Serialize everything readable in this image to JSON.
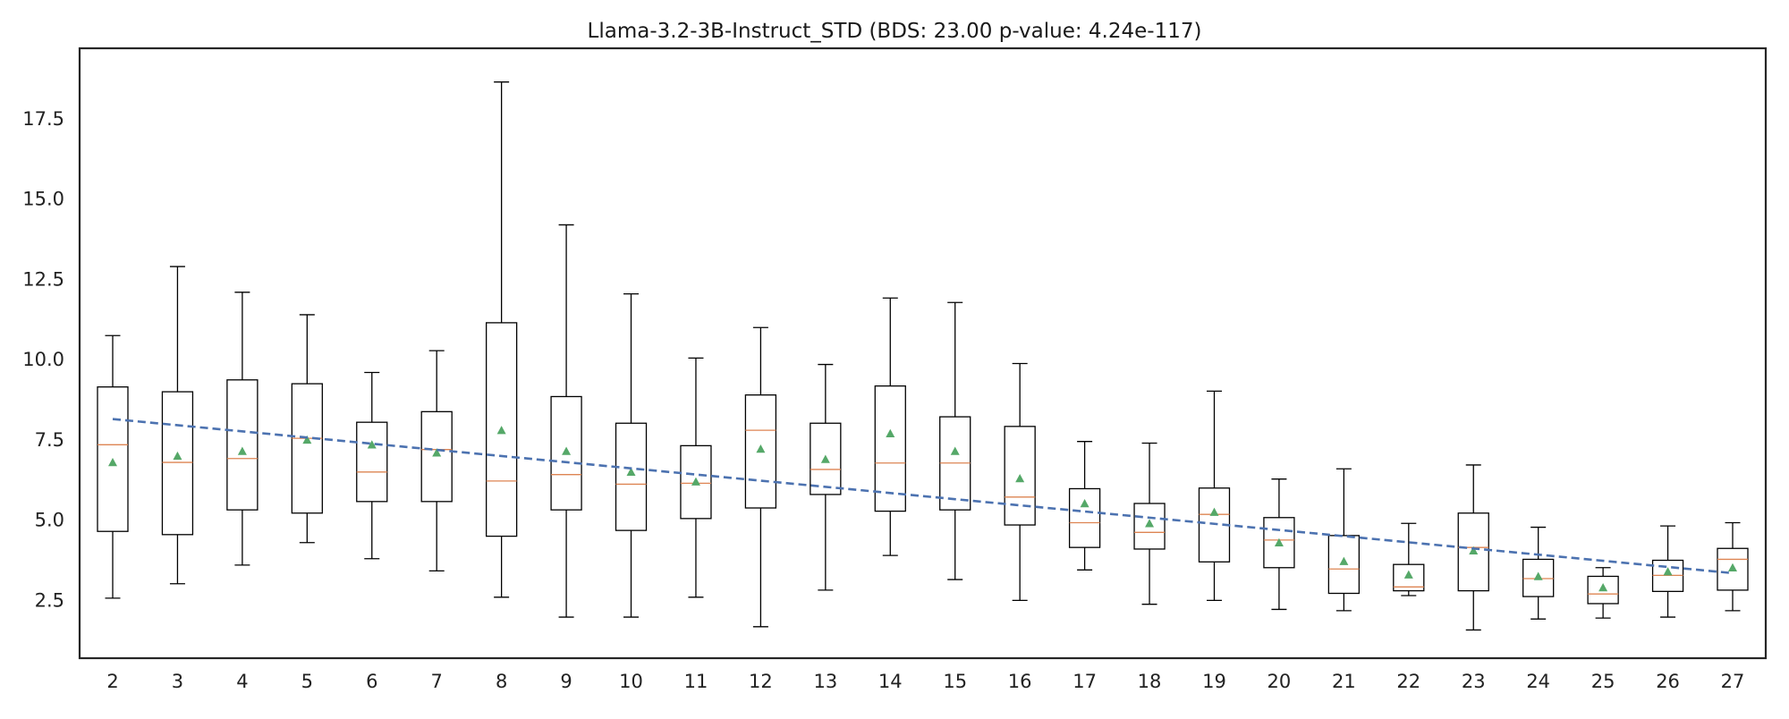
{
  "chart_data": {
    "type": "box",
    "title": "Llama-3.2-3B-Instruct_STD (BDS: 23.00 p-value: 4.24e-117)",
    "xlabel": "",
    "ylabel": "",
    "categories": [
      "2",
      "3",
      "4",
      "5",
      "6",
      "7",
      "8",
      "9",
      "10",
      "11",
      "12",
      "13",
      "14",
      "15",
      "16",
      "17",
      "18",
      "19",
      "20",
      "21",
      "22",
      "23",
      "24",
      "25",
      "26",
      "27"
    ],
    "yticks": [
      "2.5",
      "5.0",
      "7.5",
      "10.0",
      "12.5",
      "15.0",
      "17.5"
    ],
    "ylim": [
      0.7,
      19.7
    ],
    "grid": false,
    "boxes": [
      {
        "cat": "2",
        "whislo": 2.57,
        "q1": 4.65,
        "med": 7.35,
        "q3": 9.15,
        "whishi": 10.75,
        "mean": 6.8
      },
      {
        "cat": "3",
        "whislo": 3.02,
        "q1": 4.55,
        "med": 6.8,
        "q3": 9.0,
        "whishi": 12.9,
        "mean": 7.0
      },
      {
        "cat": "4",
        "whislo": 3.6,
        "q1": 5.32,
        "med": 6.92,
        "q3": 9.37,
        "whishi": 12.1,
        "mean": 7.15
      },
      {
        "cat": "5",
        "whislo": 4.3,
        "q1": 5.22,
        "med": 7.55,
        "q3": 9.25,
        "whishi": 11.4,
        "mean": 7.5
      },
      {
        "cat": "6",
        "whislo": 3.8,
        "q1": 5.58,
        "med": 6.5,
        "q3": 8.05,
        "whishi": 9.6,
        "mean": 7.35
      },
      {
        "cat": "7",
        "whislo": 3.42,
        "q1": 5.58,
        "med": 7.2,
        "q3": 8.38,
        "whishi": 10.28,
        "mean": 7.1
      },
      {
        "cat": "8",
        "whislo": 2.6,
        "q1": 4.5,
        "med": 6.22,
        "q3": 11.15,
        "whishi": 18.65,
        "mean": 7.8
      },
      {
        "cat": "9",
        "whislo": 1.98,
        "q1": 5.32,
        "med": 6.42,
        "q3": 8.85,
        "whishi": 14.2,
        "mean": 7.15
      },
      {
        "cat": "10",
        "whislo": 1.98,
        "q1": 4.68,
        "med": 6.12,
        "q3": 8.02,
        "whishi": 12.05,
        "mean": 6.5
      },
      {
        "cat": "11",
        "whislo": 2.6,
        "q1": 5.05,
        "med": 6.15,
        "q3": 7.32,
        "whishi": 10.05,
        "mean": 6.2
      },
      {
        "cat": "12",
        "whislo": 1.68,
        "q1": 5.38,
        "med": 7.8,
        "q3": 8.9,
        "whishi": 11.0,
        "mean": 7.22
      },
      {
        "cat": "13",
        "whislo": 2.82,
        "q1": 5.8,
        "med": 6.58,
        "q3": 8.02,
        "whishi": 9.85,
        "mean": 6.9
      },
      {
        "cat": "14",
        "whislo": 3.9,
        "q1": 5.28,
        "med": 6.78,
        "q3": 9.18,
        "whishi": 11.92,
        "mean": 7.7
      },
      {
        "cat": "15",
        "whislo": 3.15,
        "q1": 5.32,
        "med": 6.78,
        "q3": 8.22,
        "whishi": 11.78,
        "mean": 7.15
      },
      {
        "cat": "16",
        "whislo": 2.5,
        "q1": 4.85,
        "med": 5.72,
        "q3": 7.92,
        "whishi": 9.88,
        "mean": 6.3
      },
      {
        "cat": "17",
        "whislo": 3.45,
        "q1": 4.15,
        "med": 4.92,
        "q3": 5.98,
        "whishi": 7.45,
        "mean": 5.52
      },
      {
        "cat": "18",
        "whislo": 2.38,
        "q1": 4.1,
        "med": 4.62,
        "q3": 5.52,
        "whishi": 7.4,
        "mean": 4.9
      },
      {
        "cat": "19",
        "whislo": 2.5,
        "q1": 3.7,
        "med": 5.18,
        "q3": 6.0,
        "whishi": 9.02,
        "mean": 5.25
      },
      {
        "cat": "20",
        "whislo": 2.22,
        "q1": 3.52,
        "med": 4.38,
        "q3": 5.08,
        "whishi": 6.28,
        "mean": 4.3
      },
      {
        "cat": "21",
        "whislo": 2.18,
        "q1": 2.72,
        "med": 3.48,
        "q3": 4.52,
        "whishi": 6.6,
        "mean": 3.72
      },
      {
        "cat": "22",
        "whislo": 2.65,
        "q1": 2.8,
        "med": 2.92,
        "q3": 3.62,
        "whishi": 4.9,
        "mean": 3.3
      },
      {
        "cat": "23",
        "whislo": 1.58,
        "q1": 2.8,
        "med": 4.15,
        "q3": 5.22,
        "whishi": 6.72,
        "mean": 4.05
      },
      {
        "cat": "24",
        "whislo": 1.92,
        "q1": 2.62,
        "med": 3.18,
        "q3": 3.78,
        "whishi": 4.78,
        "mean": 3.25
      },
      {
        "cat": "25",
        "whislo": 1.95,
        "q1": 2.4,
        "med": 2.7,
        "q3": 3.25,
        "whishi": 3.52,
        "mean": 2.9
      },
      {
        "cat": "26",
        "whislo": 1.98,
        "q1": 2.78,
        "med": 3.28,
        "q3": 3.75,
        "whishi": 4.82,
        "mean": 3.4
      },
      {
        "cat": "27",
        "whislo": 2.18,
        "q1": 2.82,
        "med": 3.78,
        "q3": 4.12,
        "whishi": 4.92,
        "mean": 3.52
      }
    ],
    "trend_line": {
      "style": "dashed",
      "x_start": "2",
      "y_start": 8.15,
      "x_end": "27",
      "y_end": 3.35
    },
    "colors": {
      "box": "#000000",
      "median": "#dd8452",
      "mean_marker": "#55a868",
      "trend": "#4c72b0",
      "frame": "#262626"
    }
  }
}
